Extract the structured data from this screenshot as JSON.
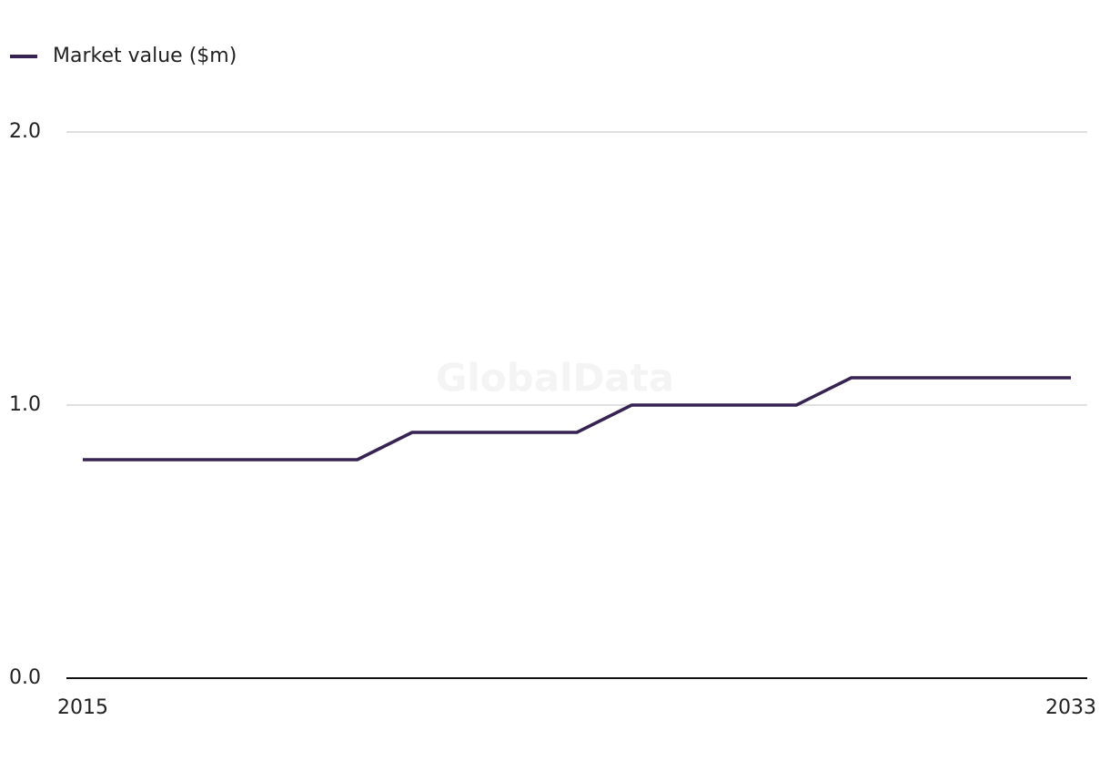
{
  "chart_data": {
    "type": "line",
    "watermark": "GlobalData",
    "x": [
      2015,
      2016,
      2017,
      2018,
      2019,
      2020,
      2021,
      2022,
      2023,
      2024,
      2025,
      2026,
      2027,
      2028,
      2029,
      2030,
      2031,
      2032,
      2033
    ],
    "series": [
      {
        "name": "Market value ($m)",
        "color": "#372353",
        "values": [
          0.8,
          0.8,
          0.8,
          0.8,
          0.8,
          0.8,
          0.9,
          0.9,
          0.9,
          0.9,
          1.0,
          1.0,
          1.0,
          1.0,
          1.1,
          1.1,
          1.1,
          1.1,
          1.1
        ]
      }
    ],
    "xlim": [
      2015,
      2033
    ],
    "xticks": [
      2015,
      2033
    ],
    "ylim": [
      0,
      2
    ],
    "yticks": [
      {
        "value": 0,
        "label": "0.0"
      },
      {
        "value": 1,
        "label": "1.0"
      },
      {
        "value": 2,
        "label": "2.0"
      }
    ],
    "grid": true,
    "legend": "top-left"
  }
}
